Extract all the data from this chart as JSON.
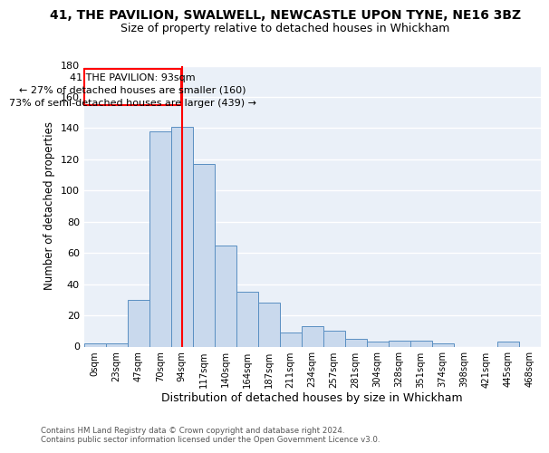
{
  "title": "41, THE PAVILION, SWALWELL, NEWCASTLE UPON TYNE, NE16 3BZ",
  "subtitle": "Size of property relative to detached houses in Whickham",
  "xlabel": "Distribution of detached houses by size in Whickham",
  "ylabel": "Number of detached properties",
  "bar_color": "#c9d9ed",
  "bar_edge_color": "#5a8fc2",
  "bg_color": "#eaf0f8",
  "grid_color": "white",
  "categories": [
    "0sqm",
    "23sqm",
    "47sqm",
    "70sqm",
    "94sqm",
    "117sqm",
    "140sqm",
    "164sqm",
    "187sqm",
    "211sqm",
    "234sqm",
    "257sqm",
    "281sqm",
    "304sqm",
    "328sqm",
    "351sqm",
    "374sqm",
    "398sqm",
    "421sqm",
    "445sqm",
    "468sqm"
  ],
  "values": [
    2,
    2,
    30,
    138,
    141,
    117,
    65,
    35,
    28,
    9,
    13,
    10,
    5,
    3,
    4,
    4,
    2,
    0,
    0,
    3,
    0
  ],
  "ylim": [
    0,
    180
  ],
  "yticks": [
    0,
    20,
    40,
    60,
    80,
    100,
    120,
    140,
    160,
    180
  ],
  "red_line_x": 4,
  "annotation_title": "41 THE PAVILION: 93sqm",
  "annotation_line1": "← 27% of detached houses are smaller (160)",
  "annotation_line2": "73% of semi-detached houses are larger (439) →",
  "footer1": "Contains HM Land Registry data © Crown copyright and database right 2024.",
  "footer2": "Contains public sector information licensed under the Open Government Licence v3.0."
}
